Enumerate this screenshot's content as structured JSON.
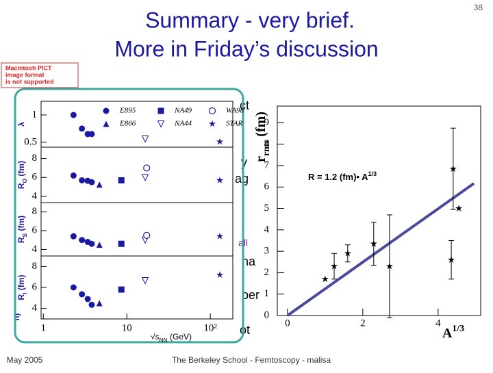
{
  "slide": {
    "title": [
      "Summary - very brief.",
      "More in Friday’s discussion"
    ],
    "page_number": "38",
    "footer_date": "May 2005",
    "footer_text": "The Berkeley School - Femtoscopy - malisa",
    "pict_notice": [
      "Macintosh PICT",
      "image format",
      "is not supported"
    ],
    "background_fragments": [
      "ct",
      "y",
      "ag",
      "all",
      "na",
      "per",
      "ot",
      "n)"
    ]
  },
  "chart_data": [
    {
      "type": "multi-panel-scatter",
      "x_label": {
        "base": "√s",
        "sub": "NN",
        "unit": " (GeV)"
      },
      "log_x": true,
      "xlim": [
        0.94,
        186
      ],
      "xticks": [
        1,
        10,
        {
          "value": 100,
          "label": "10²"
        }
      ],
      "color": "#1a1aa0",
      "legend": [
        {
          "name": "E895",
          "marker": "circle"
        },
        {
          "name": "E866",
          "marker": "triangle"
        },
        {
          "name": "NA49",
          "marker": "square"
        },
        {
          "name": "NA44",
          "marker": "triangle-down"
        },
        {
          "name": "WA98",
          "marker": "open-circle"
        },
        {
          "name": "STAR",
          "marker": "star"
        }
      ],
      "series_x": [
        [
          2.3,
          2.9,
          3.4,
          3.8
        ],
        [
          4.7
        ],
        [
          8.6
        ],
        [
          16.6
        ],
        [
          17.3
        ],
        [
          130
        ]
      ],
      "panels": [
        {
          "ylabel": {
            "base": "λ"
          },
          "ylim": [
            0.41,
            1.25
          ],
          "yticks": [
            0.5,
            1
          ],
          "values": [
            [
              1.0,
              0.75,
              0.65,
              0.65
            ],
            [
              null
            ],
            [
              null
            ],
            [
              0.56
            ],
            [
              null
            ],
            [
              0.51
            ]
          ]
        },
        {
          "ylabel": {
            "base": "R",
            "sub": "O",
            "unit": " (fm)"
          },
          "ylim": [
            3.35,
            9.2
          ],
          "yticks": [
            4,
            6,
            8
          ],
          "values": [
            [
              6.2,
              5.7,
              5.65,
              5.5
            ],
            [
              5.25
            ],
            [
              5.7
            ],
            [
              6.0
            ],
            [
              7.0
            ],
            [
              5.7
            ]
          ]
        },
        {
          "ylabel": {
            "base": "R",
            "sub": "S",
            "unit": " (fm)"
          },
          "ylim": [
            3.3,
            9.0
          ],
          "yticks": [
            4,
            6,
            8
          ],
          "values": [
            [
              5.4,
              5.0,
              4.8,
              4.6
            ],
            [
              4.5
            ],
            [
              4.6
            ],
            [
              5.0
            ],
            [
              5.5
            ],
            [
              5.4
            ]
          ]
        },
        {
          "ylabel": {
            "base": "R",
            "sub": "l",
            "unit": " (fm)"
          },
          "ylim": [
            3.0,
            9.0
          ],
          "yticks": [
            4,
            6,
            8
          ],
          "values": [
            [
              6.0,
              5.35,
              4.9,
              4.35
            ],
            [
              4.5
            ],
            [
              5.8
            ],
            [
              6.65
            ],
            [
              null
            ],
            [
              7.2
            ]
          ]
        }
      ]
    },
    {
      "type": "scatter",
      "y_label": {
        "base": "r",
        "sub": "rms",
        "unit": " (fm)"
      },
      "x_label": {
        "base": "A",
        "sup": "1/3"
      },
      "xlim": [
        -0.27,
        5.13
      ],
      "xticks": [
        0,
        2,
        4
      ],
      "ylim": [
        0,
        9.78
      ],
      "yticks": [
        0,
        1,
        2,
        3,
        4,
        5,
        6,
        7,
        8,
        9
      ],
      "color": "#000000",
      "x": [
        1.0,
        1.24,
        1.6,
        2.29,
        2.71,
        4.35,
        4.4,
        4.55
      ],
      "values": [
        1.7,
        2.3,
        2.9,
        3.35,
        2.3,
        2.6,
        6.85,
        5.0
      ],
      "errors": [
        null,
        0.6,
        0.4,
        1.0,
        2.4,
        0.9,
        1.9,
        null
      ],
      "annotation": {
        "base": "R = 1.2 (fm)• A",
        "sup": "1/3"
      },
      "fit_line": {
        "x": [
          0,
          4.95
        ],
        "values": [
          0,
          6.17
        ],
        "color": "#4a4a9a"
      }
    }
  ]
}
